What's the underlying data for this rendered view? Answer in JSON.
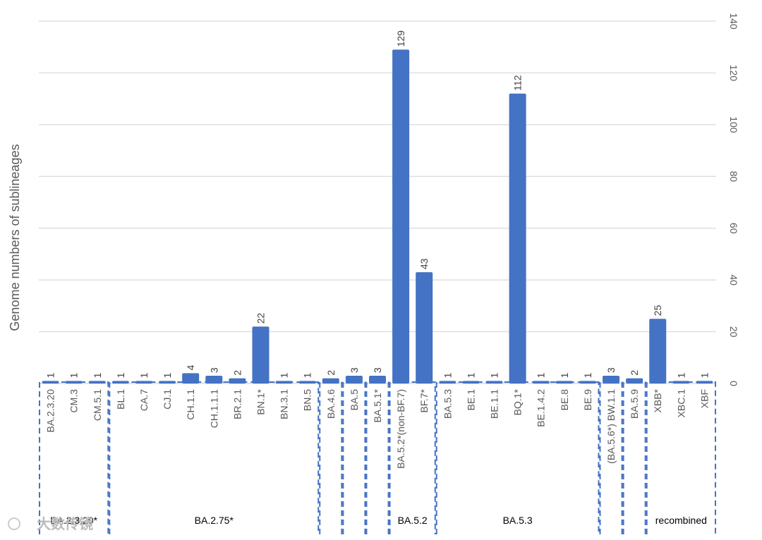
{
  "chart_data": {
    "type": "bar",
    "ylabel": "Genome numbers of sublineages",
    "ylim": [
      0,
      140
    ],
    "yticks": [
      0,
      20,
      40,
      60,
      80,
      100,
      120,
      140
    ],
    "y_axis_position": "right",
    "grid": true,
    "bar_color": "#4472c4",
    "categories": [
      "BA.2.3.20",
      "CM.3",
      "CM.5.1",
      "BL.1",
      "CA.7",
      "CJ.1",
      "CH.1.1",
      "CH.1.1.1",
      "BR.2.1",
      "BN.1*",
      "BN.3.1",
      "BN.5",
      "BA.4.6",
      "BA.5",
      "BA.5.1*",
      "BA.5.2*(non-BF.7)",
      "BF.7*",
      "BA.5.3",
      "BE.1",
      "BE.1.1",
      "BQ.1*",
      "BE.1.4.2",
      "BE.8",
      "BE.9",
      "(BA.5.6*) BW.1.1",
      "BA.5.9",
      "XBB*",
      "XBC.1",
      "XBF"
    ],
    "values": [
      1,
      1,
      1,
      1,
      1,
      1,
      4,
      3,
      2,
      22,
      1,
      1,
      2,
      3,
      3,
      129,
      43,
      1,
      1,
      1,
      112,
      1,
      1,
      1,
      3,
      2,
      25,
      1,
      1
    ],
    "data_labels": [
      "1",
      "1",
      "1",
      "1",
      "1",
      "1",
      "4",
      "3",
      "2",
      "22",
      "1",
      "1",
      "2",
      "3",
      "3",
      "129",
      "43",
      "1",
      "1",
      "1",
      "112",
      "1",
      "1",
      "1",
      "3",
      "2",
      "25",
      "1",
      "1"
    ],
    "groups": [
      {
        "label": "BA.2.3.20*",
        "start": 0,
        "end": 2
      },
      {
        "label": "BA.2.75*",
        "start": 3,
        "end": 11
      },
      {
        "label": "",
        "start": 12,
        "end": 12
      },
      {
        "label": "",
        "start": 13,
        "end": 13
      },
      {
        "label": "",
        "start": 14,
        "end": 14
      },
      {
        "label": "BA.5.2",
        "start": 15,
        "end": 16
      },
      {
        "label": "BA.5.3",
        "start": 17,
        "end": 23
      },
      {
        "label": "",
        "start": 24,
        "end": 24
      },
      {
        "label": "",
        "start": 25,
        "end": 25
      },
      {
        "label": "recombined",
        "start": 26,
        "end": 28
      }
    ]
  },
  "watermark": "大数传镜"
}
